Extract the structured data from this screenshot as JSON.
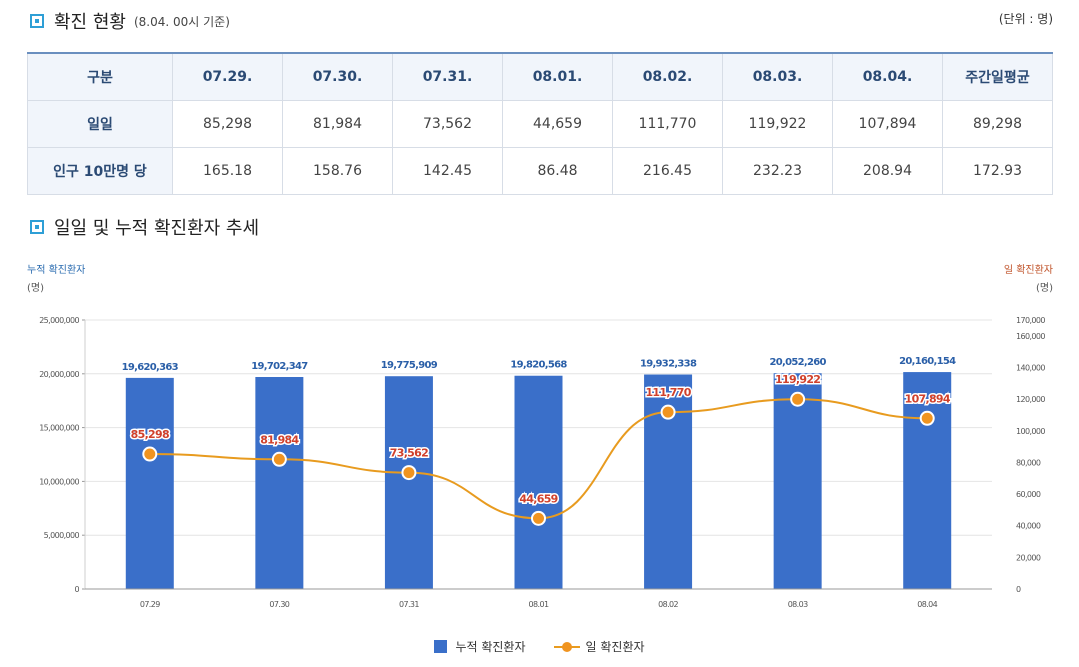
{
  "section1": {
    "title": "확진 현황",
    "subtitle": "(8.04. 00시 기준)",
    "unit": "(단위 : 명)"
  },
  "table": {
    "headers": [
      "구분",
      "07.29.",
      "07.30.",
      "07.31.",
      "08.01.",
      "08.02.",
      "08.03.",
      "08.04.",
      "주간일평균"
    ],
    "rows": [
      [
        "일일",
        "85,298",
        "81,984",
        "73,562",
        "44,659",
        "111,770",
        "119,922",
        "107,894",
        "89,298"
      ],
      [
        "인구 10만명 당",
        "165.18",
        "158.76",
        "142.45",
        "86.48",
        "216.45",
        "232.23",
        "208.94",
        "172.93"
      ]
    ]
  },
  "section2": {
    "title": "일일 및 누적 확진환자 추세"
  },
  "chart_data": {
    "type": "bar",
    "left_axis_title": "누적 확진환자",
    "left_axis_unit": "(명)",
    "right_axis_title": "일 확진환자",
    "right_axis_unit": "(명)",
    "categories": [
      "07.29",
      "07.30",
      "07.31",
      "08.01",
      "08.02",
      "08.03",
      "08.04"
    ],
    "series": [
      {
        "name": "누적 확진환자",
        "type": "bar",
        "axis": "left",
        "color": "#3a6fc9",
        "values": [
          19620363,
          19702347,
          19775909,
          19820568,
          19932338,
          20052260,
          20160154
        ],
        "labels": [
          "19,620,363",
          "19,702,347",
          "19,775,909",
          "19,820,568",
          "19,932,338",
          "20,052,260",
          "20,160,154"
        ]
      },
      {
        "name": "일 확진환자",
        "type": "line",
        "axis": "right",
        "color": "#e89b1f",
        "values": [
          85298,
          81984,
          73562,
          44659,
          111770,
          119922,
          107894
        ],
        "labels": [
          "85,298",
          "81,984",
          "73,562",
          "44,659",
          "111,770",
          "119,922",
          "107,894"
        ]
      }
    ],
    "ylim_left": [
      0,
      25000000
    ],
    "yticks_left": [
      "0",
      "5,000,000",
      "10,000,000",
      "15,000,000",
      "20,000,000",
      "25,000,000"
    ],
    "ylim_right": [
      0,
      170000
    ],
    "yticks_right": [
      "0",
      "20,000",
      "40,000",
      "60,000",
      "80,000",
      "100,000",
      "120,000",
      "140,000",
      "160,000",
      "170,000"
    ],
    "grid": true,
    "legend_position": "bottom"
  }
}
